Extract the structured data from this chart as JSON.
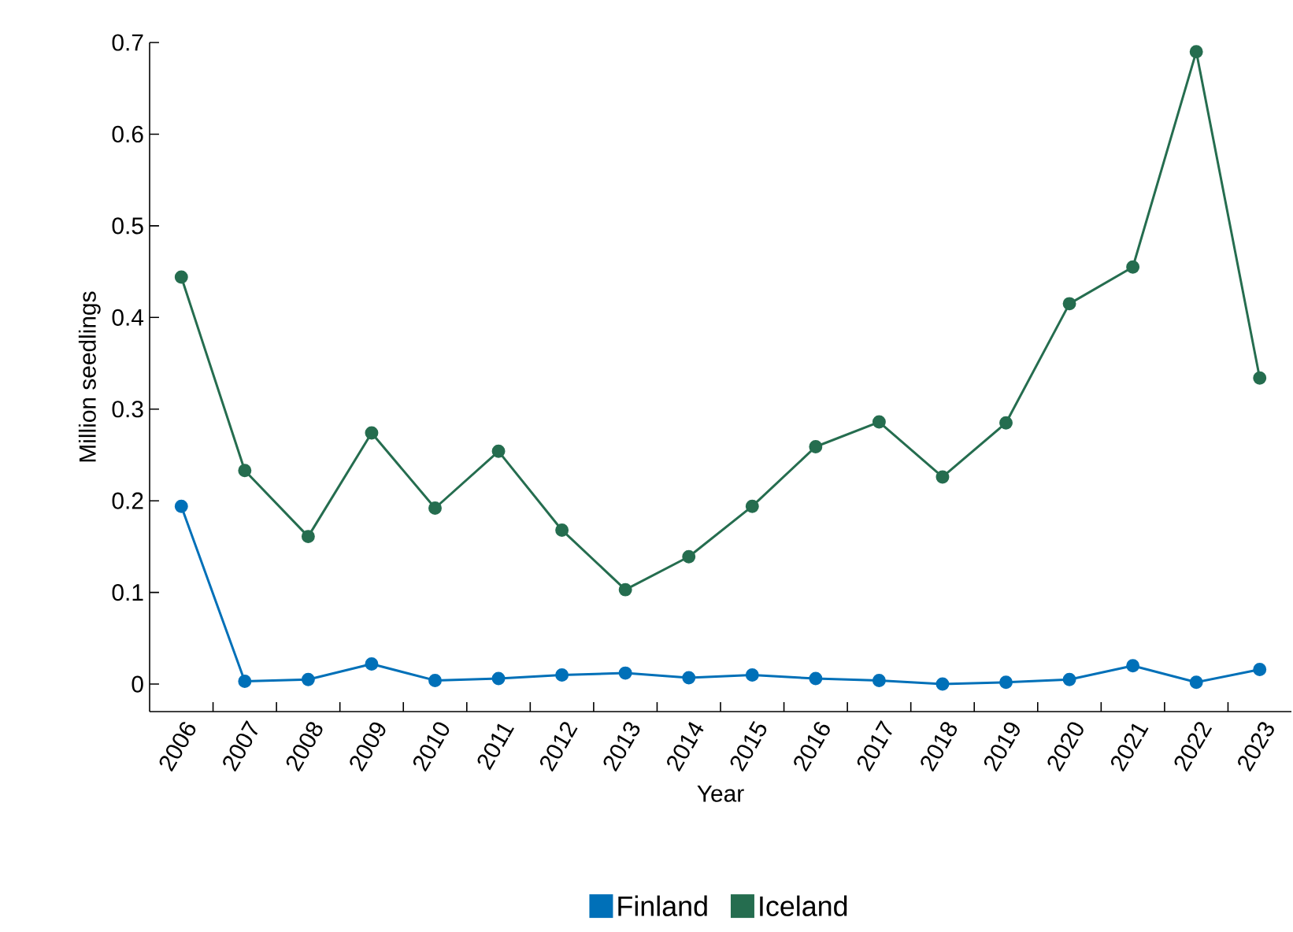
{
  "chart_data": {
    "type": "line",
    "xlabel": "Year",
    "ylabel": "Million seedlings",
    "categories": [
      "2006",
      "2007",
      "2008",
      "2009",
      "2010",
      "2011",
      "2012",
      "2013",
      "2014",
      "2015",
      "2016",
      "2017",
      "2018",
      "2019",
      "2020",
      "2021",
      "2022",
      "2023"
    ],
    "series": [
      {
        "name": "Finland",
        "color": "#0070b8",
        "values": [
          0.194,
          0.003,
          0.005,
          0.022,
          0.004,
          0.006,
          0.01,
          0.012,
          0.007,
          0.01,
          0.006,
          0.004,
          0.0,
          0.002,
          0.005,
          0.02,
          0.002,
          0.016
        ]
      },
      {
        "name": "Iceland",
        "color": "#256d4f",
        "values": [
          0.444,
          0.233,
          0.161,
          0.274,
          0.192,
          0.254,
          0.168,
          0.103,
          0.139,
          0.194,
          0.259,
          0.286,
          0.226,
          0.285,
          0.415,
          0.455,
          0.69,
          0.334
        ]
      }
    ],
    "ylim": [
      -0.03,
      0.7
    ],
    "yticks": [
      0,
      0.1,
      0.2,
      0.3,
      0.4,
      0.5,
      0.6,
      0.7
    ],
    "marker": "circle",
    "line_style": "solid",
    "legend": "bottom",
    "grid": false
  }
}
